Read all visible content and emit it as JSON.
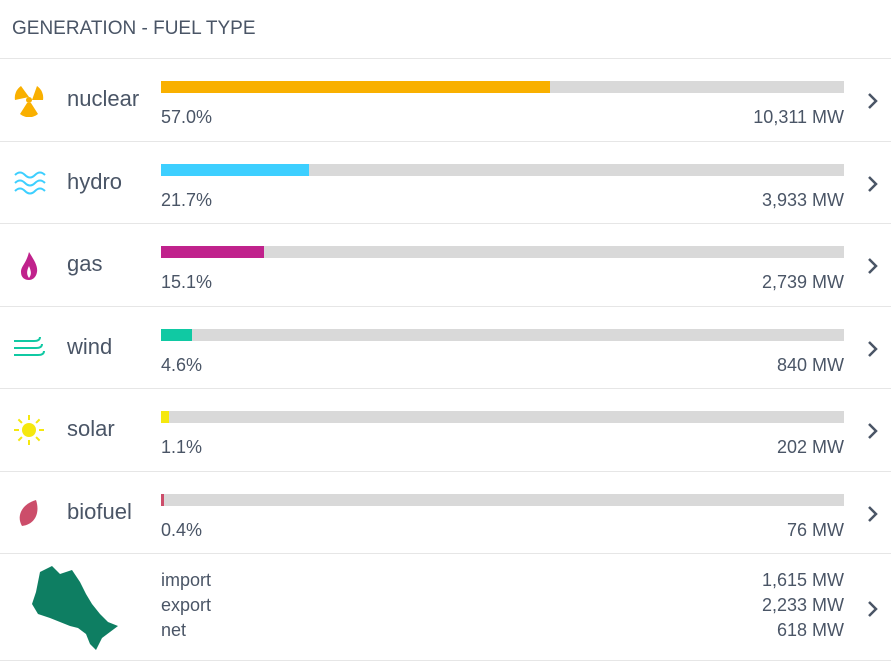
{
  "header": {
    "title": "GENERATION - FUEL TYPE"
  },
  "rows": [
    {
      "name": "nuclear",
      "color": "#f9b000",
      "percent": {
        "value": 57.0,
        "label": "57.0%"
      },
      "output": "10,311 MW"
    },
    {
      "name": "hydro",
      "color": "#3dcfff",
      "percent": {
        "value": 21.7,
        "label": "21.7%"
      },
      "output": "3,933 MW"
    },
    {
      "name": "gas",
      "color": "#c0228c",
      "percent": {
        "value": 15.1,
        "label": "15.1%"
      },
      "output": "2,739 MW"
    },
    {
      "name": "wind",
      "color": "#10c9a3",
      "percent": {
        "value": 4.6,
        "label": "4.6%"
      },
      "output": "840 MW"
    },
    {
      "name": "solar",
      "color": "#f5e80f",
      "percent": {
        "value": 1.1,
        "label": "1.1%"
      },
      "output": "202 MW"
    },
    {
      "name": "biofuel",
      "color": "#cc4d6a",
      "percent": {
        "value": 0.4,
        "label": "0.4%"
      },
      "output": "76 MW"
    }
  ],
  "trade": [
    {
      "label": "import",
      "value": "1,615 MW"
    },
    {
      "label": "export",
      "value": "2,233 MW"
    },
    {
      "label": "net",
      "value": "618 MW"
    }
  ]
}
